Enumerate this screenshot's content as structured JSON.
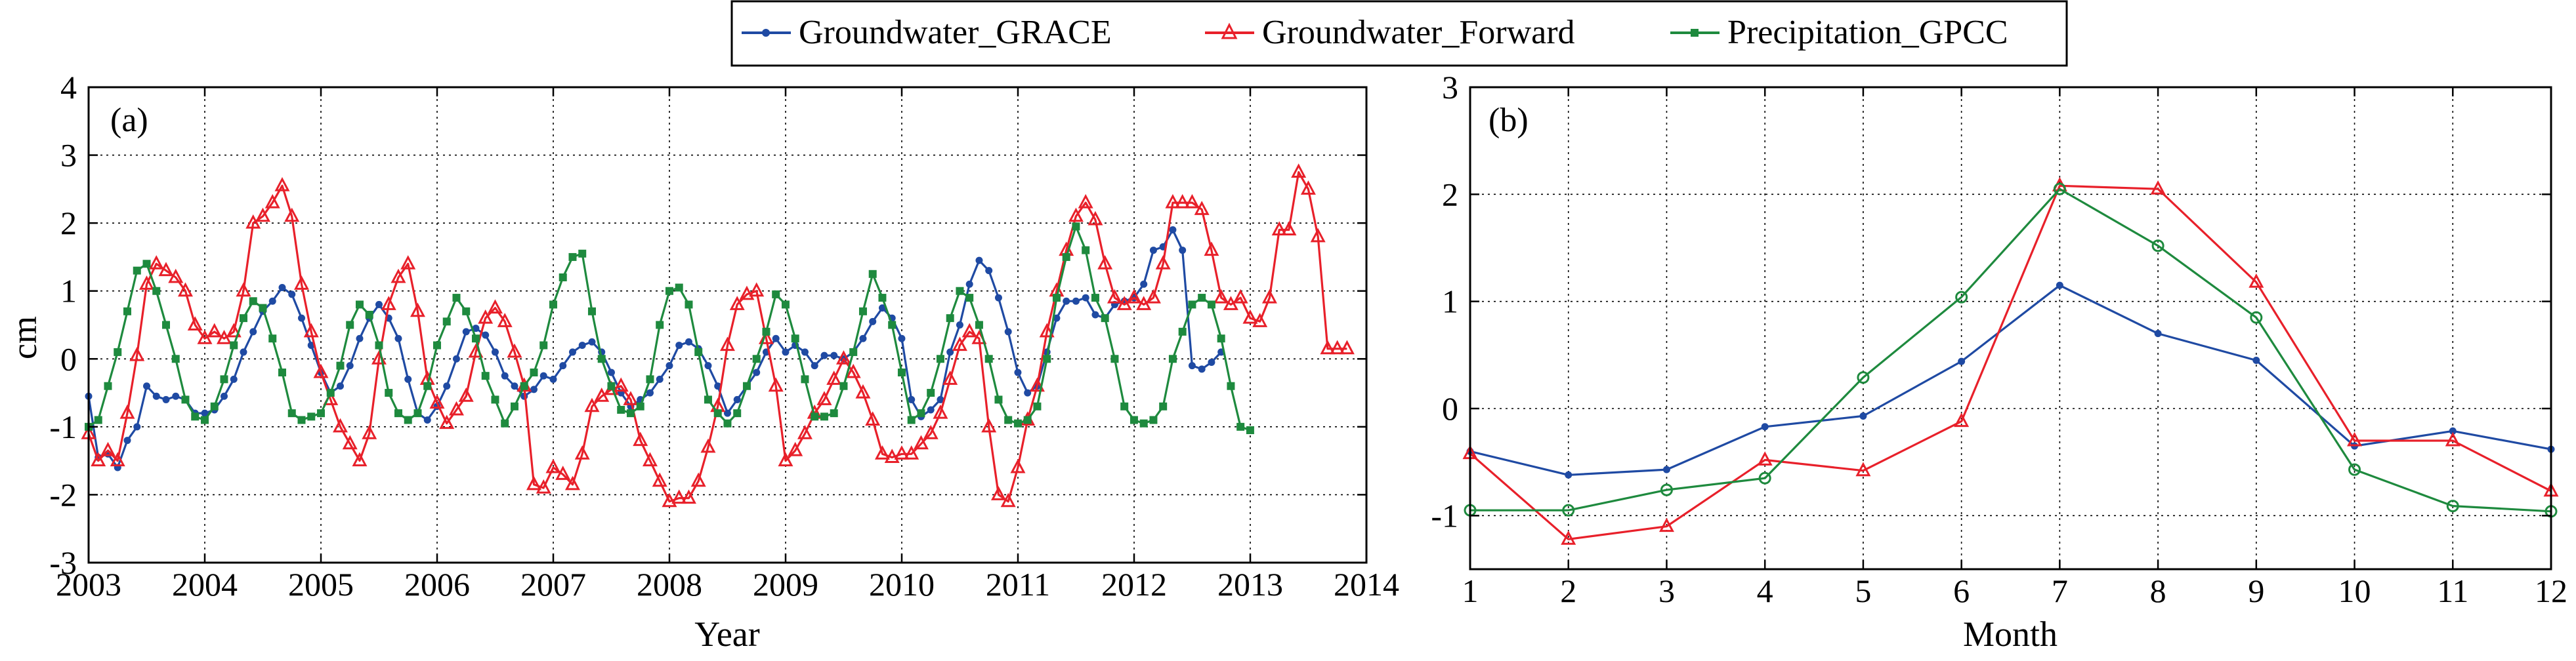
{
  "legend": {
    "items": [
      {
        "label": "Groundwater_GRACE",
        "color": "#1f4aa3",
        "marker": "dot"
      },
      {
        "label": "Groundwater_Forward",
        "color": "#e8202a",
        "marker": "triangle"
      },
      {
        "label": "Precipitation_GPCC",
        "color": "#1e8a3e",
        "marker": "square"
      }
    ]
  },
  "chart_data": [
    {
      "type": "line",
      "panel_label": "(a)",
      "xlabel": "Year",
      "ylabel": "cm",
      "xlim": [
        2003,
        2014
      ],
      "ylim": [
        -3,
        4
      ],
      "xticks": [
        2003,
        2004,
        2005,
        2006,
        2007,
        2008,
        2009,
        2010,
        2011,
        2012,
        2013,
        2014
      ],
      "yticks": [
        -3,
        -2,
        -1,
        0,
        1,
        2,
        3,
        4
      ],
      "grid": true,
      "x_start": 2003.0,
      "x_step": 0.08333,
      "series": [
        {
          "name": "Groundwater_GRACE",
          "color": "#1f4aa3",
          "marker": "dot",
          "values": [
            -0.55,
            -1.45,
            -1.4,
            -1.6,
            -1.2,
            -1.0,
            -0.4,
            -0.55,
            -0.6,
            -0.55,
            -0.6,
            -0.8,
            -0.8,
            -0.75,
            -0.55,
            -0.3,
            0.1,
            0.4,
            0.7,
            0.85,
            1.05,
            0.95,
            0.6,
            0.2,
            -0.2,
            -0.5,
            -0.4,
            -0.1,
            0.3,
            0.6,
            0.8,
            0.6,
            0.3,
            -0.3,
            -0.8,
            -0.9,
            -0.7,
            -0.4,
            0.0,
            0.4,
            0.45,
            0.35,
            0.1,
            -0.25,
            -0.4,
            -0.55,
            -0.45,
            -0.25,
            -0.3,
            -0.1,
            0.1,
            0.2,
            0.25,
            0.1,
            -0.2,
            -0.5,
            -0.7,
            -0.6,
            -0.5,
            -0.3,
            -0.1,
            0.2,
            0.25,
            0.15,
            -0.1,
            -0.4,
            -0.8,
            -0.6,
            -0.4,
            -0.2,
            0.1,
            0.3,
            0.1,
            0.2,
            0.1,
            -0.1,
            0.05,
            0.05,
            0.0,
            0.1,
            0.3,
            0.55,
            0.75,
            0.6,
            0.3,
            -0.6,
            -0.85,
            -0.75,
            -0.6,
            0.1,
            0.5,
            1.1,
            1.45,
            1.3,
            0.9,
            0.4,
            -0.2,
            -0.5,
            -0.4,
            0.1,
            0.6,
            0.85,
            0.85,
            0.9,
            0.65,
            0.6,
            0.8,
            0.85,
            0.9,
            1.1,
            1.6,
            1.65,
            1.9,
            1.6,
            -0.1,
            -0.15,
            -0.05,
            0.1
          ]
        },
        {
          "name": "Groundwater_Forward",
          "color": "#e8202a",
          "marker": "triangle",
          "values": [
            -1.1,
            -1.5,
            -1.35,
            -1.5,
            -0.8,
            0.05,
            1.1,
            1.4,
            1.3,
            1.2,
            1.0,
            0.5,
            0.3,
            0.4,
            0.3,
            0.4,
            1.0,
            2.0,
            2.1,
            2.3,
            2.55,
            2.1,
            1.1,
            0.4,
            -0.2,
            -0.6,
            -1.0,
            -1.25,
            -1.5,
            -1.1,
            0.0,
            0.8,
            1.2,
            1.4,
            0.7,
            -0.3,
            -0.65,
            -0.95,
            -0.75,
            -0.55,
            0.1,
            0.6,
            0.75,
            0.55,
            0.1,
            -0.4,
            -1.85,
            -1.9,
            -1.6,
            -1.7,
            -1.85,
            -1.4,
            -0.7,
            -0.55,
            -0.45,
            -0.4,
            -0.6,
            -1.2,
            -1.5,
            -1.8,
            -2.1,
            -2.05,
            -2.05,
            -1.8,
            -1.3,
            -0.7,
            0.2,
            0.8,
            0.95,
            1.0,
            0.3,
            -0.4,
            -1.5,
            -1.35,
            -1.1,
            -0.8,
            -0.6,
            -0.3,
            0.0,
            -0.2,
            -0.5,
            -0.9,
            -1.4,
            -1.45,
            -1.4,
            -1.4,
            -1.25,
            -1.1,
            -0.8,
            -0.3,
            0.2,
            0.4,
            0.3,
            -1.0,
            -2.0,
            -2.1,
            -1.6,
            -0.9,
            -0.4,
            0.4,
            1.0,
            1.6,
            2.1,
            2.3,
            2.05,
            1.4,
            0.9,
            0.8,
            0.9,
            0.8,
            0.9,
            1.4,
            2.3,
            2.3,
            2.3,
            2.2,
            1.6,
            0.9,
            0.8,
            0.9,
            0.6,
            0.55,
            0.9,
            1.9,
            1.9,
            2.75,
            2.5,
            1.8,
            0.15,
            0.15,
            0.15
          ]
        },
        {
          "name": "Precipitation_GPCC",
          "color": "#1e8a3e",
          "marker": "square",
          "values": [
            -1.0,
            -0.9,
            -0.4,
            0.1,
            0.7,
            1.3,
            1.4,
            1.0,
            0.5,
            0.0,
            -0.6,
            -0.85,
            -0.9,
            -0.7,
            -0.3,
            0.2,
            0.6,
            0.85,
            0.75,
            0.3,
            -0.2,
            -0.8,
            -0.9,
            -0.85,
            -0.8,
            -0.5,
            -0.1,
            0.5,
            0.8,
            0.65,
            0.2,
            -0.5,
            -0.8,
            -0.9,
            -0.8,
            -0.4,
            0.2,
            0.55,
            0.9,
            0.7,
            0.3,
            -0.25,
            -0.6,
            -0.95,
            -0.7,
            -0.4,
            -0.2,
            0.2,
            0.8,
            1.2,
            1.5,
            1.55,
            0.7,
            0.0,
            -0.4,
            -0.75,
            -0.8,
            -0.7,
            -0.3,
            0.5,
            1.0,
            1.05,
            0.8,
            0.1,
            -0.6,
            -0.8,
            -0.95,
            -0.8,
            -0.4,
            0.0,
            0.4,
            0.95,
            0.8,
            0.3,
            -0.3,
            -0.85,
            -0.85,
            -0.8,
            -0.4,
            0.1,
            0.7,
            1.25,
            0.9,
            0.5,
            -0.2,
            -0.9,
            -0.8,
            -0.5,
            0.0,
            0.6,
            1.0,
            0.9,
            0.5,
            0.0,
            -0.6,
            -0.9,
            -0.95,
            -0.9,
            -0.7,
            0.0,
            0.9,
            1.5,
            1.95,
            1.6,
            0.9,
            0.6,
            0.0,
            -0.7,
            -0.9,
            -0.95,
            -0.9,
            -0.7,
            0.0,
            0.4,
            0.8,
            0.9,
            0.8,
            0.3,
            -0.4,
            -1.0,
            -1.05
          ]
        }
      ]
    },
    {
      "type": "line",
      "panel_label": "(b)",
      "xlabel": "Month",
      "ylabel": "",
      "xlim": [
        1,
        12
      ],
      "ylim": [
        -1.5,
        3
      ],
      "xticks": [
        1,
        2,
        3,
        4,
        5,
        6,
        7,
        8,
        9,
        10,
        11,
        12
      ],
      "yticks": [
        -1,
        0,
        1,
        2,
        3
      ],
      "grid": true,
      "x": [
        1,
        2,
        3,
        4,
        5,
        6,
        7,
        8,
        9,
        10,
        11,
        12
      ],
      "series": [
        {
          "name": "Groundwater_GRACE",
          "color": "#1f4aa3",
          "marker": "dot",
          "values": [
            -0.4,
            -0.62,
            -0.57,
            -0.17,
            -0.07,
            0.44,
            1.15,
            0.7,
            0.45,
            -0.35,
            -0.21,
            -0.38
          ]
        },
        {
          "name": "Groundwater_Forward",
          "color": "#e8202a",
          "marker": "triangle",
          "values": [
            -0.42,
            -1.22,
            -1.1,
            -0.48,
            -0.58,
            -0.12,
            2.08,
            2.05,
            1.18,
            -0.3,
            -0.3,
            -0.77
          ]
        },
        {
          "name": "Precipitation_GPCC",
          "color": "#1e8a3e",
          "marker": "circle",
          "values": [
            -0.95,
            -0.95,
            -0.76,
            -0.65,
            0.29,
            1.04,
            2.05,
            1.52,
            0.85,
            -0.57,
            -0.91,
            -0.96
          ]
        }
      ]
    }
  ]
}
